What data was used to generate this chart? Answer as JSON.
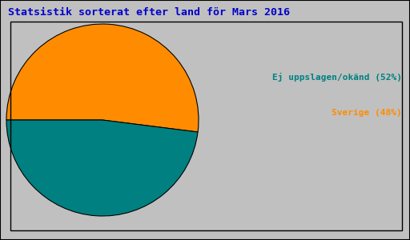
{
  "title": "Statsistik sorterat efter land för Mars 2016",
  "title_color": "#0000cc",
  "title_fontsize": 9.5,
  "slices": [
    52,
    48
  ],
  "colors": [
    "#ff8c00",
    "#008080"
  ],
  "labels": [
    "Ej uppslagen/okänd (52%)",
    "Sverige (48%)"
  ],
  "label_colors": [
    "#008080",
    "#ff8c00"
  ],
  "background_color": "#c0c0c0",
  "axes_background": "#c0c0c0",
  "font_family": "monospace",
  "startangle": 180,
  "legend_fontsize": 8
}
